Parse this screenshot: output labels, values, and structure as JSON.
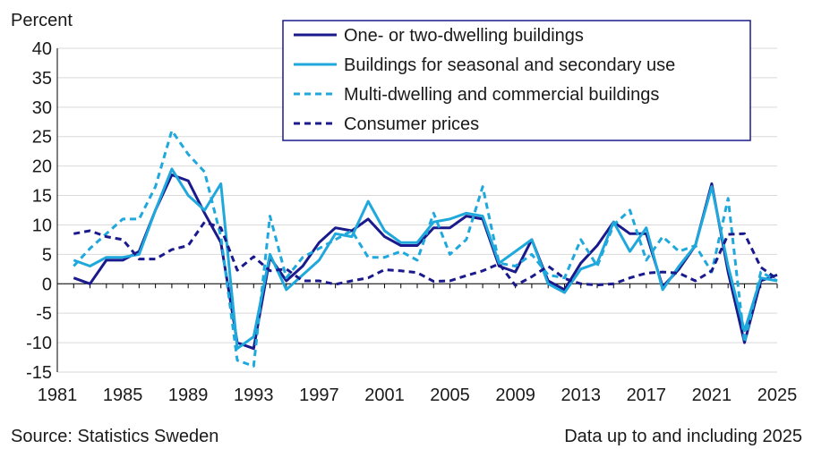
{
  "chart_data": {
    "type": "line",
    "ylabel": "Percent",
    "ylim": [
      -15,
      40
    ],
    "yticks": [
      -15,
      -10,
      -5,
      0,
      5,
      10,
      15,
      20,
      25,
      30,
      35,
      40
    ],
    "xlim": [
      1981,
      2025
    ],
    "xticks": [
      1981,
      1985,
      1989,
      1993,
      1997,
      2001,
      2005,
      2009,
      2013,
      2017,
      2021,
      2025
    ],
    "grid": "horizontal",
    "legend": "top-right",
    "series": [
      {
        "name": "One- or two-dwelling buildings",
        "color": "#1a1a8c",
        "dash": "solid",
        "x": [
          1982,
          1983,
          1984,
          1985,
          1986,
          1987,
          1988,
          1989,
          1990,
          1991,
          1992,
          1993,
          1994,
          1995,
          1996,
          1997,
          1998,
          1999,
          2000,
          2001,
          2002,
          2003,
          2004,
          2005,
          2006,
          2007,
          2008,
          2009,
          2010,
          2011,
          2012,
          2013,
          2014,
          2015,
          2016,
          2017,
          2018,
          2019,
          2020,
          2021,
          2022,
          2023,
          2024,
          2025
        ],
        "y": [
          1,
          0,
          4,
          4,
          5.5,
          12.5,
          18.5,
          17.5,
          12,
          7,
          -10,
          -11,
          4.5,
          0.5,
          3,
          7,
          9.5,
          9,
          11,
          8,
          6.5,
          6.5,
          9.5,
          9.5,
          11.5,
          11,
          3,
          2,
          7.5,
          0.5,
          -1,
          3.5,
          6.5,
          10.5,
          8.5,
          8.5,
          -0.5,
          2.5,
          6.5,
          17,
          2,
          -10,
          0.5,
          1.5
        ]
      },
      {
        "name": "Buildings for seasonal and secondary use",
        "color": "#1fa8dc",
        "dash": "solid",
        "x": [
          1982,
          1983,
          1984,
          1985,
          1986,
          1987,
          1988,
          1989,
          1990,
          1991,
          1992,
          1993,
          1994,
          1995,
          1996,
          1997,
          1998,
          1999,
          2000,
          2001,
          2002,
          2003,
          2004,
          2005,
          2006,
          2007,
          2008,
          2009,
          2010,
          2011,
          2012,
          2013,
          2014,
          2015,
          2016,
          2017,
          2018,
          2019,
          2020,
          2021,
          2022,
          2023,
          2024,
          2025
        ],
        "y": [
          4,
          3,
          4.5,
          4.5,
          5,
          12.5,
          19.5,
          15,
          12.5,
          17,
          -11,
          -9,
          5,
          -1,
          1.5,
          4,
          8.5,
          8,
          14,
          9,
          7,
          7,
          10.5,
          11,
          12,
          11.5,
          3.5,
          5.5,
          7.5,
          0,
          -1.5,
          2.5,
          3.5,
          10.5,
          5.5,
          9.5,
          -1,
          3,
          6.5,
          16.5,
          3,
          -8,
          1,
          0.5
        ]
      },
      {
        "name": "Multi-dwelling and commercial buildings",
        "color": "#1fa8dc",
        "dash": "dashed",
        "x": [
          1982,
          1983,
          1984,
          1985,
          1986,
          1987,
          1988,
          1989,
          1990,
          1991,
          1992,
          1993,
          1994,
          1995,
          1996,
          1997,
          1998,
          1999,
          2000,
          2001,
          2002,
          2003,
          2004,
          2005,
          2006,
          2007,
          2008,
          2009,
          2010,
          2011,
          2012,
          2013,
          2014,
          2015,
          2016,
          2017,
          2018,
          2019,
          2020,
          2021,
          2022,
          2023,
          2024,
          2025
        ],
        "y": [
          3,
          6,
          8.5,
          11,
          11,
          16.5,
          26,
          22,
          19,
          8,
          -13,
          -14,
          11.5,
          1,
          4.5,
          6,
          7.5,
          9,
          4.5,
          4.5,
          5.5,
          4,
          12,
          5,
          7.5,
          16.5,
          3.5,
          3,
          5,
          1.5,
          1,
          7.5,
          3,
          10,
          12.5,
          4,
          8,
          5.5,
          6.5,
          2,
          14.5,
          -10,
          2,
          0.5
        ]
      },
      {
        "name": "Consumer prices",
        "color": "#1a1a8c",
        "dash": "dashed",
        "x": [
          1982,
          1983,
          1984,
          1985,
          1986,
          1987,
          1988,
          1989,
          1990,
          1991,
          1992,
          1993,
          1994,
          1995,
          1996,
          1997,
          1998,
          1999,
          2000,
          2001,
          2002,
          2003,
          2004,
          2005,
          2006,
          2007,
          2008,
          2009,
          2010,
          2011,
          2012,
          2013,
          2014,
          2015,
          2016,
          2017,
          2018,
          2019,
          2020,
          2021,
          2022,
          2023,
          2024,
          2025
        ],
        "y": [
          8.5,
          9,
          8,
          7.5,
          4.2,
          4.2,
          5.8,
          6.5,
          10.5,
          9.5,
          2.3,
          4.6,
          2.2,
          2.5,
          0.5,
          0.5,
          -0.1,
          0.5,
          1,
          2.4,
          2.2,
          1.9,
          0.4,
          0.5,
          1.4,
          2.2,
          3.4,
          -0.3,
          1.2,
          3,
          0.9,
          0,
          -0.2,
          0,
          1,
          1.8,
          2,
          1.8,
          0.5,
          2.2,
          8.4,
          8.5,
          2.8,
          0.8
        ]
      }
    ]
  },
  "footer": {
    "source": "Source: Statistics Sweden",
    "note": "Data up to and including 2025"
  }
}
